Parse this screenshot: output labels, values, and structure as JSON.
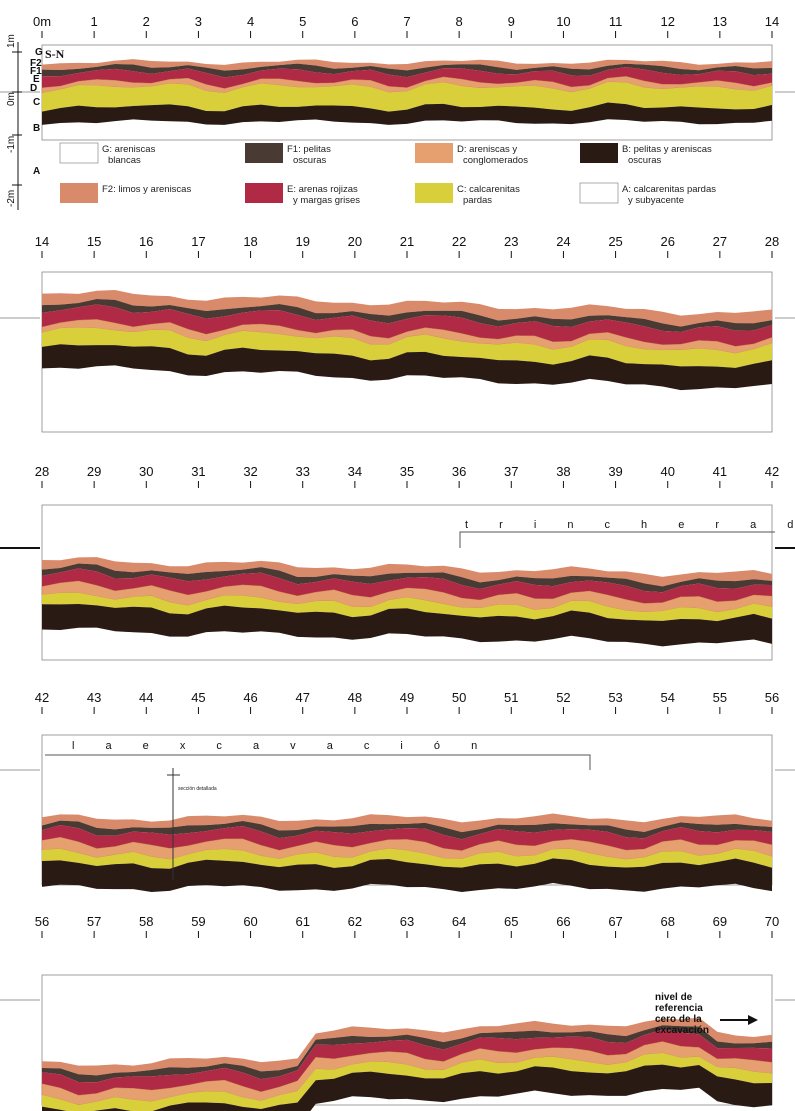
{
  "colors": {
    "G": "#ffffff",
    "F2": "#d98a6a",
    "F1": "#4a3a34",
    "E": "#b02a45",
    "D": "#e6a070",
    "C": "#d9cf3a",
    "B": "#2a1a14",
    "A": "#ffffff"
  },
  "vertical_scale": [
    "1m",
    "0m",
    "-1m",
    "-2m"
  ],
  "layer_side_labels": [
    "G",
    "F2",
    "F1",
    "E",
    "D",
    "C",
    "B",
    "A"
  ],
  "orientation": "S-N",
  "legend": [
    {
      "code": "G",
      "line1": "G: areniscas",
      "line2": "blancas"
    },
    {
      "code": "F1",
      "line1": "F1: pelitas",
      "line2": "oscuras"
    },
    {
      "code": "D",
      "line1": "D: areniscas y",
      "line2": "conglomerados"
    },
    {
      "code": "B",
      "line1": "B: pelitas y areniscas",
      "line2": "oscuras"
    },
    {
      "code": "F2",
      "line1": "F2: limos y areniscas",
      "line2": ""
    },
    {
      "code": "E",
      "line1": "E: arenas rojizas",
      "line2": "y margas grises"
    },
    {
      "code": "C",
      "line1": "C: calcarenitas",
      "line2": "pardas"
    },
    {
      "code": "A",
      "line1": "A: calcarenitas pardas",
      "line2": "y subyacente"
    }
  ],
  "panels": [
    {
      "ticks": [
        "0m",
        "1",
        "2",
        "3",
        "4",
        "5",
        "6",
        "7",
        "8",
        "9",
        "10",
        "11",
        "12",
        "13",
        "14"
      ]
    },
    {
      "ticks": [
        "14",
        "15",
        "16",
        "17",
        "18",
        "19",
        "20",
        "21",
        "22",
        "23",
        "24",
        "25",
        "26",
        "27",
        "28"
      ]
    },
    {
      "ticks": [
        "28",
        "29",
        "30",
        "31",
        "32",
        "33",
        "34",
        "35",
        "36",
        "37",
        "38",
        "39",
        "40",
        "41",
        "42"
      ]
    },
    {
      "ticks": [
        "42",
        "43",
        "44",
        "45",
        "46",
        "47",
        "48",
        "49",
        "50",
        "51",
        "52",
        "53",
        "54",
        "55",
        "56"
      ]
    },
    {
      "ticks": [
        "56",
        "57",
        "58",
        "59",
        "60",
        "61",
        "62",
        "63",
        "64",
        "65",
        "66",
        "67",
        "68",
        "69",
        "70"
      ]
    }
  ],
  "annotations": {
    "trench_1": "t r i n c h e r a   d e",
    "trench_2": "l a   e x c a v a c i ó n",
    "detail": "sección detallada",
    "reference_1": "nivel de",
    "reference_2": "referencia",
    "reference_3": "cero de la",
    "reference_4": "excavación"
  }
}
